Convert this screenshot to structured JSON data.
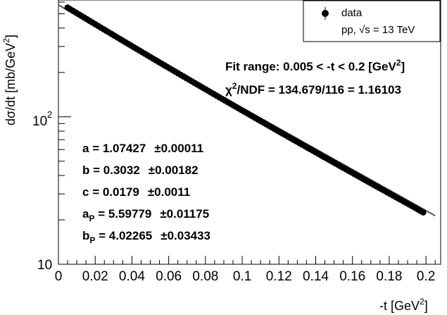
{
  "chart_data": {
    "type": "scatter",
    "x": [
      0.005,
      0.0065,
      0.008,
      0.0095,
      0.011,
      0.0125,
      0.014,
      0.0155,
      0.017,
      0.0185,
      0.02,
      0.0215,
      0.023,
      0.0245,
      0.026,
      0.0275,
      0.029,
      0.0305,
      0.032,
      0.0335,
      0.035,
      0.0365,
      0.038,
      0.0395,
      0.041,
      0.0425,
      0.044,
      0.0455,
      0.047,
      0.0485,
      0.05,
      0.0515,
      0.053,
      0.0545,
      0.056,
      0.0575,
      0.059,
      0.0605,
      0.062,
      0.0635,
      0.065,
      0.0665,
      0.068,
      0.0695,
      0.071,
      0.0725,
      0.074,
      0.0755,
      0.077,
      0.0785,
      0.08,
      0.0815,
      0.083,
      0.0845,
      0.086,
      0.0875,
      0.089,
      0.0905,
      0.092,
      0.0935,
      0.095,
      0.0965,
      0.098,
      0.0995,
      0.101,
      0.1025,
      0.104,
      0.1055,
      0.107,
      0.1085,
      0.11,
      0.1115,
      0.113,
      0.1145,
      0.116,
      0.1175,
      0.119,
      0.1205,
      0.122,
      0.1235,
      0.125,
      0.1265,
      0.128,
      0.1295,
      0.131,
      0.1325,
      0.134,
      0.1355,
      0.137,
      0.1385,
      0.14,
      0.1415,
      0.143,
      0.1445,
      0.146,
      0.1475,
      0.149,
      0.1505,
      0.152,
      0.1535,
      0.155,
      0.1565,
      0.158,
      0.1595,
      0.161,
      0.1625,
      0.164,
      0.1655,
      0.167,
      0.1685,
      0.17,
      0.1715,
      0.173,
      0.1745,
      0.176,
      0.1775,
      0.179,
      0.1805,
      0.182,
      0.1835,
      0.185,
      0.1865,
      0.188,
      0.1895,
      0.191,
      0.1925,
      0.194,
      0.1955,
      0.197,
      0.1985
    ],
    "y": [
      550.5,
      536.4,
      522.7,
      509.4,
      496.3,
      483.7,
      471.3,
      459.3,
      447.6,
      436.2,
      425.1,
      414.2,
      403.7,
      393.4,
      383.4,
      373.7,
      364.2,
      355.0,
      346.0,
      337.2,
      328.7,
      320.4,
      312.3,
      304.4,
      296.7,
      289.3,
      282.0,
      274.9,
      268.0,
      261.3,
      254.7,
      248.3,
      242.1,
      236.0,
      230.1,
      224.3,
      218.7,
      213.3,
      208.0,
      202.8,
      197.8,
      192.8,
      188.0,
      183.4,
      178.8,
      174.4,
      170.1,
      165.9,
      161.8,
      157.8,
      153.9,
      150.1,
      146.4,
      142.8,
      139.3,
      135.9,
      132.5,
      129.3,
      126.1,
      123.0,
      120.0,
      117.1,
      114.2,
      111.4,
      108.7,
      106.1,
      103.5,
      100.9,
      98.5,
      96.1,
      93.7,
      91.5,
      89.2,
      87.1,
      85.0,
      82.9,
      80.9,
      78.9,
      77.0,
      75.2,
      73.3,
      71.6,
      69.8,
      68.2,
      66.5,
      64.9,
      63.4,
      61.8,
      60.3,
      58.9,
      57.5,
      56.1,
      54.7,
      53.4,
      52.2,
      50.9,
      49.7,
      48.5,
      47.4,
      46.2,
      45.1,
      44.1,
      43.0,
      42.0,
      41.0,
      40.0,
      39.1,
      38.1,
      37.2,
      36.3,
      35.5,
      34.6,
      33.8,
      33.0,
      32.2,
      31.5,
      30.7,
      30.0,
      29.3,
      28.6,
      27.9,
      27.3,
      26.6,
      26.0,
      25.4,
      24.8,
      24.2,
      23.6,
      23.0,
      22.5
    ],
    "fit_x": [
      0.0,
      0.205
    ],
    "fit_y": [
      572.9,
      21.35
    ],
    "xlim": [
      0.0,
      0.208
    ],
    "ylim": [
      10,
      620
    ],
    "y_scale": "log",
    "xticks": [
      "0",
      "0.02",
      "0.04",
      "0.06",
      "0.08",
      "0.1",
      "0.12",
      "0.14",
      "0.16",
      "0.18",
      "0.2"
    ],
    "ytick_labels": [
      "10",
      "10",
      "2"
    ],
    "xlabel_main": "-t  [GeV",
    "xlabel_sup": "2",
    "xlabel_end": "]",
    "ylabel": "dσ/dt [mb/GeV",
    "ylabel_sup": "2",
    "ylabel_end": "]",
    "legend": {
      "series_name": "data",
      "caption_a": "pp, ",
      "caption_sqrt": "√s",
      "caption_b": " = 13 TeV"
    },
    "fit_range": {
      "text": "Fit range: 0.005 < -t < 0.2 [GeV",
      "sup": "2",
      "end": "]"
    },
    "chi2": {
      "chi": "χ",
      "sup": "2",
      "text": "/NDF = 134.679/116 = 1.16103"
    },
    "params": [
      {
        "name": "a",
        "sub": "",
        "value": " = 1.07427",
        "err": "±0.00011"
      },
      {
        "name": "b",
        "sub": "",
        "value": " = 0.3032",
        "err": "±0.00182"
      },
      {
        "name": "c",
        "sub": "",
        "value": " = 0.0179",
        "err": "±0.0011"
      },
      {
        "name": "a",
        "sub": "P",
        "value": " = 5.59779",
        "err": "±0.01175"
      },
      {
        "name": "b",
        "sub": "P",
        "value": " = 4.02265",
        "err": "±0.03433"
      }
    ],
    "colors": {
      "marker": "#000000",
      "fit_line": "#555555",
      "axis": "#000000"
    }
  }
}
